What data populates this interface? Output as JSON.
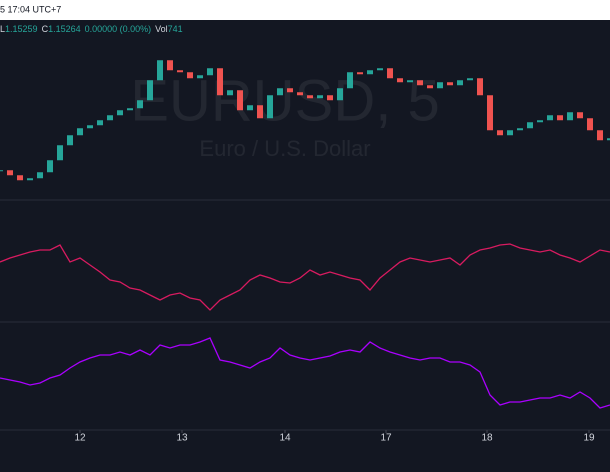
{
  "header": {
    "time": "5 17:04 UTC+7",
    "fields": [
      {
        "key": "L",
        "value": "1.15259"
      },
      {
        "key": "C",
        "value": "1.15264"
      },
      {
        "key": "",
        "value": "0.00000 (0.00%)"
      },
      {
        "key": "Vol",
        "value": "741"
      }
    ]
  },
  "watermark": {
    "symbol": "EURUSD, 5",
    "description": "Euro / U.S. Dollar"
  },
  "chart_data": [
    {
      "type": "candlestick",
      "up_color": "#26a69a",
      "down_color": "#ef5350",
      "xlim": [
        0,
        61
      ],
      "ylim": [
        1.1481,
        1.1621
      ],
      "values": [
        1.15008,
        1.14968,
        1.14928,
        1.14944,
        1.14992,
        1.15088,
        1.15208,
        1.15288,
        1.15344,
        1.15368,
        1.15408,
        1.15448,
        1.15488,
        1.15504,
        1.15568,
        1.15728,
        1.15888,
        1.15808,
        1.15792,
        1.15744,
        1.15768,
        1.15824,
        1.15608,
        1.15648,
        1.15488,
        1.15528,
        1.15424,
        1.15608,
        1.15664,
        1.15632,
        1.15608,
        1.15584,
        1.15608,
        1.15568,
        1.15664,
        1.15792,
        1.15776,
        1.15808,
        1.15824,
        1.15744,
        1.15712,
        1.15728,
        1.15688,
        1.15664,
        1.15712,
        1.15688,
        1.15728,
        1.15744,
        1.15608,
        1.15328,
        1.15288,
        1.15328,
        1.15344,
        1.15392,
        1.15408,
        1.15448,
        1.15408,
        1.15472,
        1.15424,
        1.15328,
        1.15248,
        1.15264
      ]
    },
    {
      "type": "line",
      "color": "#d81b60",
      "xlim": [
        0,
        61
      ],
      "ylim": [
        0,
        122
      ],
      "values": [
        60,
        64,
        67,
        70,
        72,
        72,
        77,
        60,
        64,
        57,
        50,
        42,
        40,
        34,
        32,
        27,
        22,
        27,
        29,
        24,
        22,
        12,
        22,
        27,
        32,
        42,
        47,
        44,
        40,
        39,
        44,
        52,
        47,
        50,
        47,
        44,
        42,
        32,
        44,
        52,
        60,
        64,
        62,
        60,
        62,
        64,
        57,
        67,
        72,
        74,
        77,
        78,
        74,
        72,
        70,
        72,
        67,
        64,
        60,
        66,
        72,
        70
      ]
    },
    {
      "type": "line",
      "color": "#aa00ff",
      "xlim": [
        0,
        61
      ],
      "ylim": [
        0,
        108
      ],
      "values": [
        52,
        50,
        48,
        45,
        47,
        52,
        55,
        62,
        68,
        72,
        75,
        75,
        78,
        75,
        80,
        75,
        85,
        82,
        85,
        85,
        88,
        92,
        70,
        68,
        65,
        62,
        68,
        72,
        82,
        75,
        72,
        70,
        72,
        74,
        78,
        80,
        78,
        88,
        82,
        78,
        75,
        72,
        70,
        72,
        72,
        68,
        68,
        65,
        58,
        35,
        25,
        28,
        28,
        30,
        32,
        32,
        35,
        32,
        38,
        32,
        22,
        25
      ],
      "xticks": [
        {
          "value": 8,
          "label": "12"
        },
        {
          "value": 18.2,
          "label": "13"
        },
        {
          "value": 28.5,
          "label": "14"
        },
        {
          "value": 38.6,
          "label": "17"
        },
        {
          "value": 48.7,
          "label": "18"
        },
        {
          "value": 58.9,
          "label": "19"
        }
      ]
    }
  ]
}
